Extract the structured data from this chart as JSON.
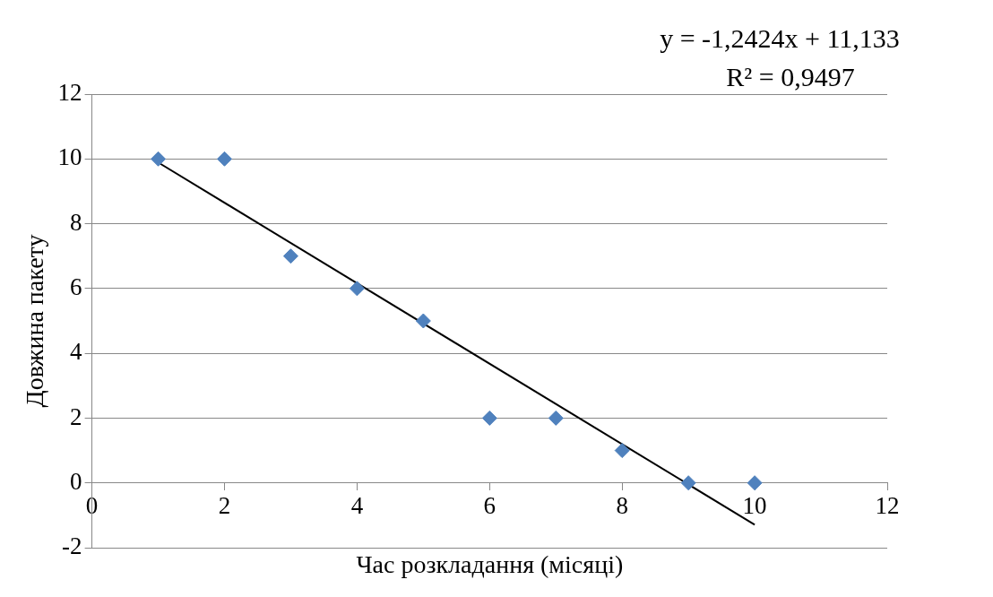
{
  "chart_data": {
    "type": "scatter",
    "xlabel": "Час розкладання (місяці)",
    "ylabel": "Довжина пакету",
    "xlim": [
      0,
      12
    ],
    "xticks": [
      0,
      2,
      4,
      6,
      8,
      10,
      12
    ],
    "ylim": [
      -2,
      12
    ],
    "yticks": [
      -2,
      0,
      2,
      4,
      6,
      8,
      10,
      12
    ],
    "grid": "y",
    "legend": false,
    "series": [
      {
        "color": "#4f81bd",
        "marker": "diamond",
        "x": [
          1,
          2,
          3,
          4,
          5,
          6,
          7,
          8,
          9,
          10
        ],
        "values": [
          10,
          10,
          7,
          6,
          5,
          2,
          2,
          1,
          0,
          0
        ]
      },
      {
        "type": "line",
        "marker": "none",
        "color": "#000000",
        "x": [
          1,
          10
        ],
        "values": [
          9.89,
          -1.29
        ]
      }
    ],
    "annotations": [
      "y = -1,2424x + 11,133",
      "R² = 0,9497"
    ]
  }
}
